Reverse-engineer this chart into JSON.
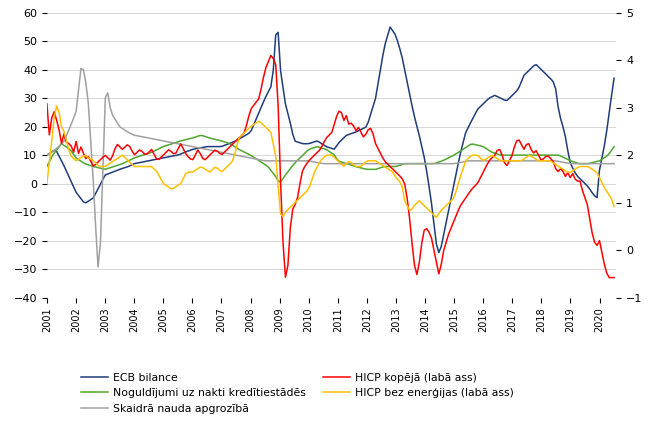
{
  "title": "",
  "ylim_left": [
    -40,
    60
  ],
  "ylim_right": [
    -1,
    5
  ],
  "yticks_left": [
    -40,
    -30,
    -20,
    -10,
    0,
    10,
    20,
    30,
    40,
    50,
    60
  ],
  "yticks_right": [
    -1,
    0,
    1,
    2,
    3,
    4,
    5
  ],
  "colors": {
    "ecb": "#1f3d7a",
    "noguldijumi": "#4ea72e",
    "skaidra": "#a0a0a0",
    "hicp_kopeja": "#ff0000",
    "hicp_bez": "#ffc000"
  },
  "legend": [
    {
      "label": "ECB bilance",
      "color": "#1f3d7a"
    },
    {
      "label": "Noguldījumi uz nakti kredītiestādēs",
      "color": "#4ea72e"
    },
    {
      "label": "Skaidrā nauda apgrozībā",
      "color": "#a0a0a0"
    },
    {
      "label": "HICP kopējā (labā ass)",
      "color": "#ff0000"
    },
    {
      "label": "HICP bez enerģijas (labā ass)",
      "color": "#ffc000"
    }
  ],
  "figsize": [
    6.7,
    4.25
  ],
  "dpi": 100
}
